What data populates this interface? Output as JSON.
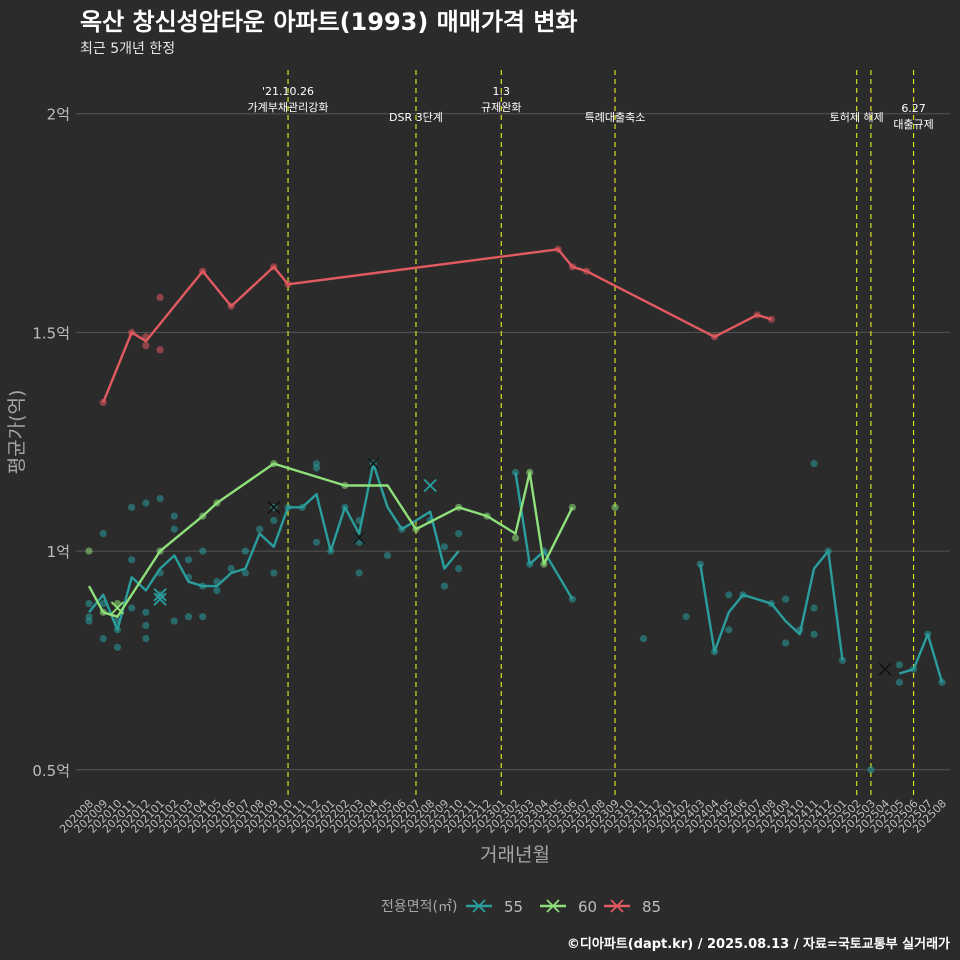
{
  "title": "옥산 창신성암타운 아파트(1993) 매매가격 변화",
  "subtitle": "최근 5개년 한정",
  "caption": "©디아파트(dapt.kr) / 2025.08.13 / 자료=국토교통부 실거래가",
  "colors": {
    "background": "#2b2b2b",
    "grid": "#555555",
    "text": "#ffffff",
    "axis_text": "#bdbdbd",
    "event_line": "#d8e021",
    "s55": "#2a9d9d",
    "s60": "#8fe07a",
    "s85": "#e05a5f"
  },
  "chart_data": {
    "type": "line",
    "xlabel": "거래년월",
    "ylabel": "평균가(억)",
    "x_ticks": [
      "202008",
      "202009",
      "202010",
      "202011",
      "202012",
      "202101",
      "202102",
      "202103",
      "202104",
      "202105",
      "202106",
      "202107",
      "202108",
      "202109",
      "202110",
      "202111",
      "202112",
      "202201",
      "202202",
      "202203",
      "202204",
      "202205",
      "202206",
      "202207",
      "202208",
      "202209",
      "202210",
      "202211",
      "202212",
      "202301",
      "202302",
      "202303",
      "202304",
      "202305",
      "202306",
      "202307",
      "202308",
      "202309",
      "202310",
      "202311",
      "202312",
      "202401",
      "202402",
      "202403",
      "202404",
      "202405",
      "202406",
      "202407",
      "202408",
      "202409",
      "202410",
      "202411",
      "202412",
      "202501",
      "202502",
      "202503",
      "202504",
      "202505",
      "202506",
      "202507",
      "202508"
    ],
    "y_ticks": [
      {
        "value": 0.5,
        "label": "0.5억"
      },
      {
        "value": 1.0,
        "label": "1억"
      },
      {
        "value": 1.5,
        "label": "1.5억"
      },
      {
        "value": 2.0,
        "label": "2억"
      }
    ],
    "ylim": [
      0.44,
      2.1
    ],
    "grid": true,
    "legend": {
      "position": "bottom",
      "title": "전용면적(㎡)"
    },
    "events": [
      {
        "x": "202110",
        "label": "'21.10.26\n가계부채관리강화"
      },
      {
        "x": "202207",
        "label": "DSR 3단계"
      },
      {
        "x": "202301",
        "label": "1.3\n규제완화"
      },
      {
        "x": "202309",
        "label": "특례대출축소"
      },
      {
        "x": "202502",
        "label": "토허제 해제"
      },
      {
        "x": "202503",
        "label": ""
      },
      {
        "x": "202506",
        "label": "6.27\n대출규제"
      }
    ],
    "series": [
      {
        "name": "55",
        "color": "#2a9d9d",
        "line": [
          [
            "202008",
            0.86
          ],
          [
            "202009",
            0.9
          ],
          [
            "202010",
            0.82
          ],
          [
            "202011",
            0.94
          ],
          [
            "202012",
            0.91
          ],
          [
            "202101",
            0.96
          ],
          [
            "202102",
            0.99
          ],
          [
            "202103",
            0.93
          ],
          [
            "202104",
            0.92
          ],
          [
            "202105",
            0.92
          ],
          [
            "202106",
            0.95
          ],
          [
            "202107",
            0.96
          ],
          [
            "202108",
            1.04
          ],
          [
            "202109",
            1.01
          ],
          [
            "202110",
            1.1
          ],
          [
            "202111",
            1.1
          ],
          [
            "202112",
            1.13
          ],
          [
            "202201",
            1.0
          ],
          [
            "202202",
            1.1
          ],
          [
            "202203",
            1.04
          ],
          [
            "202204",
            1.2
          ],
          [
            "202205",
            1.1
          ],
          [
            "202206",
            1.05
          ],
          [
            "202207",
            1.07
          ],
          [
            "202208",
            1.09
          ],
          [
            "202209",
            0.96
          ],
          [
            "202210",
            1.0
          ],
          [
            "202302",
            1.18
          ],
          [
            "202303",
            0.97
          ],
          [
            "202304",
            1.0
          ],
          [
            "202306",
            0.89
          ],
          [
            "202403",
            0.97
          ],
          [
            "202404",
            0.77
          ],
          [
            "202405",
            0.86
          ],
          [
            "202406",
            0.9
          ],
          [
            "202408",
            0.88
          ],
          [
            "202409",
            0.84
          ],
          [
            "202410",
            0.81
          ],
          [
            "202411",
            0.96
          ],
          [
            "202412",
            1.0
          ],
          [
            "202501",
            0.75
          ],
          [
            "202505",
            0.72
          ],
          [
            "202506",
            0.73
          ],
          [
            "202507",
            0.81
          ],
          [
            "202508",
            0.7
          ]
        ],
        "points": [
          [
            "202008",
            0.85
          ],
          [
            "202008",
            0.88
          ],
          [
            "202008",
            0.84
          ],
          [
            "202009",
            1.04
          ],
          [
            "202009",
            0.8
          ],
          [
            "202009",
            0.88
          ],
          [
            "202010",
            0.84
          ],
          [
            "202010",
            0.78
          ],
          [
            "202010",
            0.82
          ],
          [
            "202011",
            1.1
          ],
          [
            "202011",
            0.98
          ],
          [
            "202011",
            0.87
          ],
          [
            "202012",
            1.11
          ],
          [
            "202012",
            0.86
          ],
          [
            "202012",
            0.83
          ],
          [
            "202012",
            0.8
          ],
          [
            "202101",
            1.12
          ],
          [
            "202101",
            0.95
          ],
          [
            "202101",
            0.9
          ],
          [
            "202102",
            1.08
          ],
          [
            "202102",
            1.05
          ],
          [
            "202102",
            0.84
          ],
          [
            "202103",
            0.98
          ],
          [
            "202103",
            0.94
          ],
          [
            "202103",
            0.85
          ],
          [
            "202104",
            1.0
          ],
          [
            "202104",
            0.85
          ],
          [
            "202104",
            0.92
          ],
          [
            "202105",
            0.91
          ],
          [
            "202105",
            0.93
          ],
          [
            "202106",
            0.96
          ],
          [
            "202107",
            0.95
          ],
          [
            "202107",
            1.0
          ],
          [
            "202108",
            1.05
          ],
          [
            "202109",
            0.95
          ],
          [
            "202109",
            1.07
          ],
          [
            "202109",
            1.1
          ],
          [
            "202110",
            1.1
          ],
          [
            "202111",
            1.1
          ],
          [
            "202112",
            1.2
          ],
          [
            "202112",
            1.19
          ],
          [
            "202112",
            1.02
          ],
          [
            "202201",
            1.0
          ],
          [
            "202202",
            1.1
          ],
          [
            "202203",
            0.95
          ],
          [
            "202203",
            1.02
          ],
          [
            "202203",
            1.07
          ],
          [
            "202204",
            1.2
          ],
          [
            "202205",
            0.99
          ],
          [
            "202206",
            1.05
          ],
          [
            "202208",
            1.07
          ],
          [
            "202209",
            1.01
          ],
          [
            "202209",
            0.92
          ],
          [
            "202210",
            1.04
          ],
          [
            "202210",
            0.96
          ],
          [
            "202302",
            1.18
          ],
          [
            "202303",
            0.97
          ],
          [
            "202304",
            1.0
          ],
          [
            "202306",
            0.89
          ],
          [
            "202311",
            0.8
          ],
          [
            "202402",
            0.85
          ],
          [
            "202403",
            0.97
          ],
          [
            "202404",
            0.77
          ],
          [
            "202405",
            0.9
          ],
          [
            "202405",
            0.82
          ],
          [
            "202406",
            0.9
          ],
          [
            "202408",
            0.88
          ],
          [
            "202409",
            0.79
          ],
          [
            "202409",
            0.89
          ],
          [
            "202410",
            0.82
          ],
          [
            "202411",
            1.2
          ],
          [
            "202411",
            0.87
          ],
          [
            "202411",
            0.81
          ],
          [
            "202412",
            1.0
          ],
          [
            "202501",
            0.75
          ],
          [
            "202503",
            0.5
          ],
          [
            "202505",
            0.7
          ],
          [
            "202505",
            0.74
          ],
          [
            "202506",
            0.73
          ],
          [
            "202507",
            0.81
          ],
          [
            "202508",
            0.7
          ]
        ],
        "crosses": [
          [
            "202101",
            0.9
          ],
          [
            "202101",
            0.89
          ],
          [
            "202204",
            1.2
          ],
          [
            "202203",
            1.03
          ],
          [
            "202208",
            1.15
          ]
        ]
      },
      {
        "name": "60",
        "color": "#8fe07a",
        "line": [
          [
            "202008",
            0.92
          ],
          [
            "202009",
            0.86
          ],
          [
            "202010",
            0.85
          ],
          [
            "202101",
            1.0
          ],
          [
            "202104",
            1.08
          ],
          [
            "202105",
            1.11
          ],
          [
            "202109",
            1.2
          ],
          [
            "202202",
            1.15
          ],
          [
            "202205",
            1.15
          ],
          [
            "202207",
            1.05
          ],
          [
            "202210",
            1.1
          ],
          [
            "202212",
            1.08
          ],
          [
            "202302",
            1.04
          ],
          [
            "202303",
            1.18
          ],
          [
            "202304",
            0.97
          ],
          [
            "202306",
            1.1
          ]
        ],
        "points": [
          [
            "202008",
            1.0
          ],
          [
            "202009",
            0.86
          ],
          [
            "202010",
            0.88
          ],
          [
            "202101",
            1.0
          ],
          [
            "202104",
            1.08
          ],
          [
            "202105",
            1.11
          ],
          [
            "202109",
            1.2
          ],
          [
            "202202",
            1.15
          ],
          [
            "202207",
            1.05
          ],
          [
            "202210",
            1.1
          ],
          [
            "202212",
            1.08
          ],
          [
            "202302",
            1.03
          ],
          [
            "202303",
            1.18
          ],
          [
            "202304",
            0.97
          ],
          [
            "202306",
            1.1
          ],
          [
            "202309",
            1.1
          ]
        ],
        "crosses": [
          [
            "202010",
            0.87
          ]
        ]
      },
      {
        "name": "85",
        "color": "#e05a5f",
        "line": [
          [
            "202009",
            1.34
          ],
          [
            "202011",
            1.5
          ],
          [
            "202012",
            1.48
          ],
          [
            "202104",
            1.64
          ],
          [
            "202106",
            1.56
          ],
          [
            "202109",
            1.65
          ],
          [
            "202110",
            1.61
          ],
          [
            "202305",
            1.69
          ],
          [
            "202306",
            1.65
          ],
          [
            "202307",
            1.64
          ],
          [
            "202404",
            1.49
          ],
          [
            "202407",
            1.54
          ],
          [
            "202408",
            1.53
          ]
        ],
        "points": [
          [
            "202009",
            1.34
          ],
          [
            "202011",
            1.5
          ],
          [
            "202012",
            1.49
          ],
          [
            "202012",
            1.47
          ],
          [
            "202101",
            1.58
          ],
          [
            "202101",
            1.46
          ],
          [
            "202104",
            1.64
          ],
          [
            "202106",
            1.56
          ],
          [
            "202109",
            1.65
          ],
          [
            "202110",
            1.61
          ],
          [
            "202305",
            1.69
          ],
          [
            "202306",
            1.65
          ],
          [
            "202307",
            1.64
          ],
          [
            "202404",
            1.49
          ],
          [
            "202407",
            1.54
          ],
          [
            "202408",
            1.53
          ]
        ],
        "crosses": []
      }
    ],
    "black_crosses": [
      [
        "202109",
        1.1
      ],
      [
        "202204",
        1.2
      ],
      [
        "202203",
        1.03
      ],
      [
        "202504",
        0.73
      ]
    ]
  }
}
